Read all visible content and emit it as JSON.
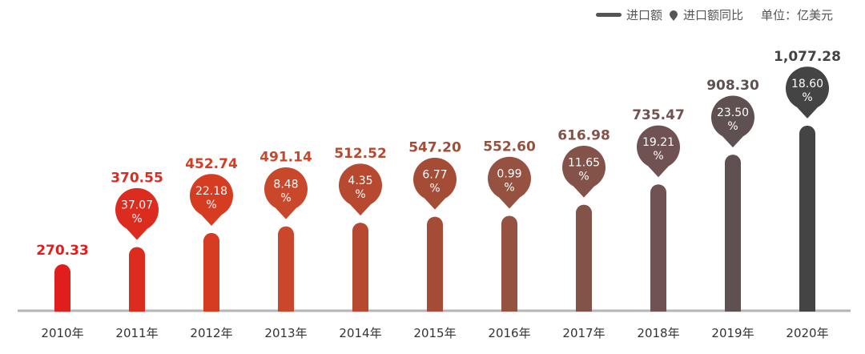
{
  "legend": {
    "bar_label": "进口额",
    "pin_label": "进口额同比",
    "unit": "单位：亿美元"
  },
  "chart_data": {
    "type": "bar",
    "title": "",
    "categories": [
      "2010年",
      "2011年",
      "2012年",
      "2013年",
      "2014年",
      "2015年",
      "2016年",
      "2017年",
      "2018年",
      "2019年",
      "2020年"
    ],
    "series": [
      {
        "name": "进口额",
        "values": [
          270.33,
          370.55,
          452.74,
          491.14,
          512.52,
          547.2,
          552.6,
          616.98,
          735.47,
          908.3,
          1077.28
        ],
        "labels": [
          "270.33",
          "370.55",
          "452.74",
          "491.14",
          "512.52",
          "547.20",
          "552.60",
          "616.98",
          "735.47",
          "908.30",
          "1,077.28"
        ]
      },
      {
        "name": "进口额同比",
        "values": [
          null,
          37.07,
          22.18,
          8.48,
          4.35,
          6.77,
          0.99,
          11.65,
          19.21,
          23.5,
          18.6
        ],
        "labels": [
          "",
          "37.07%",
          "22.18%",
          "8.48%",
          "4.35%",
          "6.77%",
          "0.99%",
          "11.65%",
          "19.21%",
          "23.50%",
          "18.60%"
        ]
      }
    ],
    "colors": [
      "#e01e1e",
      "#dc2b1f",
      "#d63c22",
      "#c9472a",
      "#b6492f",
      "#a44c36",
      "#955240",
      "#83534a",
      "#715252",
      "#5f5152",
      "#444444"
    ],
    "axis_color": "#b5b5b5",
    "ylim": [
      0,
      1200
    ]
  }
}
